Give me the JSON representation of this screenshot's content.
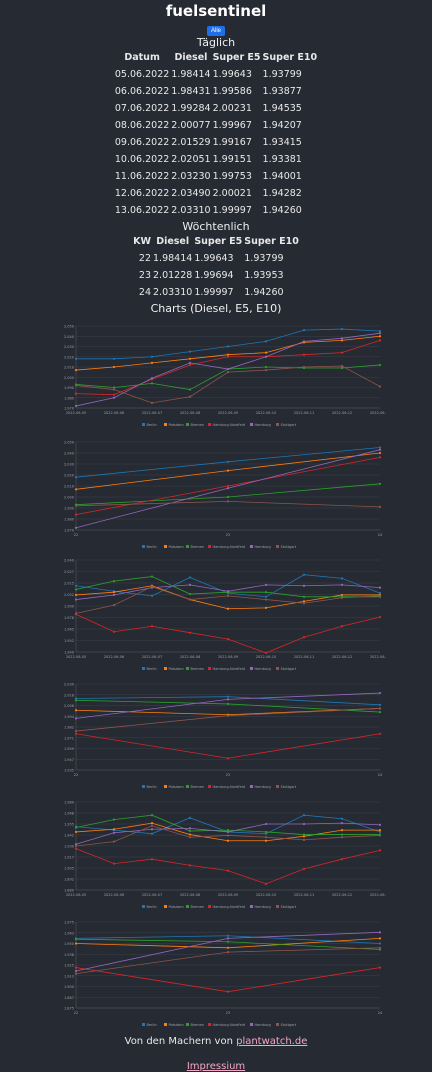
{
  "app": {
    "title": "fuelsentinel",
    "all_button": "Alle"
  },
  "daily": {
    "heading": "Täglich",
    "columns": [
      "Datum",
      "Diesel",
      "Super E5",
      "Super E10"
    ],
    "rows": [
      [
        "05.06.2022",
        "1.98414",
        "1.99643",
        "1.93799"
      ],
      [
        "06.06.2022",
        "1.98431",
        "1.99586",
        "1.93877"
      ],
      [
        "07.06.2022",
        "1.99284",
        "2.00231",
        "1.94535"
      ],
      [
        "08.06.2022",
        "2.00077",
        "1.99967",
        "1.94207"
      ],
      [
        "09.06.2022",
        "2.01529",
        "1.99167",
        "1.93415"
      ],
      [
        "10.06.2022",
        "2.02051",
        "1.99151",
        "1.93381"
      ],
      [
        "11.06.2022",
        "2.03230",
        "1.99753",
        "1.94001"
      ],
      [
        "12.06.2022",
        "2.03490",
        "2.00021",
        "1.94282"
      ],
      [
        "13.06.2022",
        "2.03310",
        "1.99997",
        "1.94260"
      ]
    ]
  },
  "weekly": {
    "heading": "Wöchtenlich",
    "columns": [
      "KW",
      "Diesel",
      "Super E5",
      "Super E10"
    ],
    "rows": [
      [
        "22",
        "1.98414",
        "1.99643",
        "1.93799"
      ],
      [
        "23",
        "2.01228",
        "1.99694",
        "1.93953"
      ],
      [
        "24",
        "2.03310",
        "1.99997",
        "1.94260"
      ]
    ]
  },
  "charts_heading": "Charts (Diesel, E5, E10)",
  "footer": {
    "prefix": "Von den Machern von ",
    "link": "plantwatch.de",
    "impressum": "Impressium"
  },
  "chart_data": [
    {
      "type": "line",
      "id": "diesel-daily",
      "x": [
        "2022-06-05",
        "2022-06-06",
        "2022-06-07",
        "2022-06-08",
        "2022-06-09",
        "2022-06-10",
        "2022-06-11",
        "2022-06-12",
        "2022-06-13"
      ],
      "ylim": [
        1.97,
        2.05
      ],
      "series": [
        {
          "name": "Berlin",
          "color": "#1f77b4",
          "values": [
            2.018,
            2.018,
            2.02,
            2.025,
            2.03,
            2.035,
            2.046,
            2.047,
            2.045
          ]
        },
        {
          "name": "Potsdam",
          "color": "#ff7f0e",
          "values": [
            2.007,
            2.01,
            2.014,
            2.018,
            2.022,
            2.024,
            2.034,
            2.036,
            2.04
          ]
        },
        {
          "name": "Bremen",
          "color": "#2ca02c",
          "values": [
            1.993,
            1.99,
            1.994,
            1.988,
            2.008,
            2.01,
            2.009,
            2.009,
            2.012
          ]
        },
        {
          "name": "Hamburg-Nordfeld",
          "color": "#d62728",
          "values": [
            1.984,
            1.983,
            1.998,
            2.012,
            2.02,
            2.02,
            2.022,
            2.024,
            2.036
          ]
        },
        {
          "name": "Hamburg",
          "color": "#9467bd",
          "values": [
            1.972,
            1.98,
            1.999,
            2.014,
            2.008,
            2.02,
            2.035,
            2.038,
            2.043
          ]
        },
        {
          "name": "Stuttgart",
          "color": "#8c564b",
          "values": [
            1.992,
            1.988,
            1.975,
            1.981,
            2.005,
            2.007,
            2.01,
            2.011,
            1.991
          ]
        }
      ]
    },
    {
      "type": "line",
      "id": "diesel-weekly",
      "x": [
        "22",
        "23",
        "24"
      ],
      "ylim": [
        1.97,
        2.05
      ],
      "series": [
        {
          "name": "Berlin",
          "color": "#1f77b4",
          "values": [
            2.018,
            2.032,
            2.045
          ]
        },
        {
          "name": "Potsdam",
          "color": "#ff7f0e",
          "values": [
            2.007,
            2.024,
            2.04
          ]
        },
        {
          "name": "Bremen",
          "color": "#2ca02c",
          "values": [
            1.993,
            2.0,
            2.012
          ]
        },
        {
          "name": "Hamburg-Nordfeld",
          "color": "#d62728",
          "values": [
            1.984,
            2.01,
            2.036
          ]
        },
        {
          "name": "Hamburg",
          "color": "#9467bd",
          "values": [
            1.972,
            2.008,
            2.043
          ]
        },
        {
          "name": "Stuttgart",
          "color": "#8c564b",
          "values": [
            1.992,
            1.996,
            1.991
          ]
        }
      ]
    },
    {
      "type": "line",
      "id": "e5-daily",
      "x": [
        "2022-06-05",
        "2022-06-06",
        "2022-06-07",
        "2022-06-08",
        "2022-06-09",
        "2022-06-10",
        "2022-06-11",
        "2022-06-12",
        "2022-06-13"
      ],
      "ylim": [
        1.94,
        2.04
      ],
      "series": [
        {
          "name": "Berlin",
          "color": "#1f77b4",
          "values": [
            2.012,
            2.006,
            2.001,
            2.021,
            2.004,
            2.0,
            2.024,
            2.02,
            2.004
          ]
        },
        {
          "name": "Potsdam",
          "color": "#ff7f0e",
          "values": [
            2.002,
            2.005,
            2.012,
            1.997,
            1.987,
            1.988,
            1.995,
            2.002,
            2.002
          ]
        },
        {
          "name": "Bremen",
          "color": "#2ca02c",
          "values": [
            2.008,
            2.017,
            2.022,
            2.003,
            2.005,
            2.005,
            2.0,
            2.0,
            2.0
          ]
        },
        {
          "name": "Hamburg-Nordfeld",
          "color": "#d62728",
          "values": [
            1.981,
            1.962,
            1.968,
            1.961,
            1.954,
            1.939,
            1.956,
            1.968,
            1.978
          ]
        },
        {
          "name": "Hamburg",
          "color": "#9467bd",
          "values": [
            1.997,
            2.002,
            2.01,
            2.013,
            2.006,
            2.013,
            2.012,
            2.013,
            2.01
          ]
        },
        {
          "name": "Stuttgart",
          "color": "#8c564b",
          "values": [
            1.982,
            1.991,
            2.011,
            1.997,
            2.001,
            1.997,
            1.993,
            1.999,
            2.001
          ]
        }
      ]
    },
    {
      "type": "line",
      "id": "e5-weekly",
      "x": [
        "22",
        "23",
        "24"
      ],
      "ylim": [
        1.935,
        2.03
      ],
      "series": [
        {
          "name": "Berlin",
          "color": "#1f77b4",
          "values": [
            2.014,
            2.016,
            2.007
          ]
        },
        {
          "name": "Potsdam",
          "color": "#ff7f0e",
          "values": [
            2.001,
            1.996,
            2.003
          ]
        },
        {
          "name": "Bremen",
          "color": "#2ca02c",
          "values": [
            2.012,
            2.008,
            1.999
          ]
        },
        {
          "name": "Hamburg-Nordfeld",
          "color": "#d62728",
          "values": [
            1.975,
            1.948,
            1.975
          ]
        },
        {
          "name": "Hamburg",
          "color": "#9467bd",
          "values": [
            1.992,
            2.013,
            2.02
          ]
        },
        {
          "name": "Stuttgart",
          "color": "#8c564b",
          "values": [
            1.978,
            1.995,
            2.003
          ]
        }
      ]
    },
    {
      "type": "line",
      "id": "e10-daily",
      "x": [
        "2022-06-05",
        "2022-06-06",
        "2022-06-07",
        "2022-06-08",
        "2022-06-09",
        "2022-06-10",
        "2022-06-11",
        "2022-06-12",
        "2022-06-13"
      ],
      "ylim": [
        1.88,
        1.98
      ],
      "series": [
        {
          "name": "Berlin",
          "color": "#1f77b4",
          "values": [
            1.952,
            1.948,
            1.944,
            1.962,
            1.946,
            1.944,
            1.965,
            1.961,
            1.946
          ]
        },
        {
          "name": "Potsdam",
          "color": "#ff7f0e",
          "values": [
            1.946,
            1.949,
            1.956,
            1.943,
            1.936,
            1.936,
            1.941,
            1.948,
            1.948
          ]
        },
        {
          "name": "Bremen",
          "color": "#2ca02c",
          "values": [
            1.951,
            1.96,
            1.965,
            1.947,
            1.948,
            1.946,
            1.943,
            1.943,
            1.943
          ]
        },
        {
          "name": "Hamburg-Nordfeld",
          "color": "#d62728",
          "values": [
            1.927,
            1.91,
            1.915,
            1.908,
            1.902,
            1.887,
            1.904,
            1.915,
            1.925
          ]
        },
        {
          "name": "Hamburg",
          "color": "#9467bd",
          "values": [
            1.932,
            1.945,
            1.949,
            1.95,
            1.946,
            1.955,
            1.955,
            1.956,
            1.954
          ]
        },
        {
          "name": "Stuttgart",
          "color": "#8c564b",
          "values": [
            1.93,
            1.935,
            1.953,
            1.94,
            1.942,
            1.94,
            1.937,
            1.94,
            1.942
          ]
        }
      ]
    },
    {
      "type": "line",
      "id": "e10-weekly",
      "x": [
        "22",
        "23",
        "24"
      ],
      "ylim": [
        1.875,
        1.975
      ],
      "series": [
        {
          "name": "Berlin",
          "color": "#1f77b4",
          "values": [
            1.956,
            1.959,
            1.95
          ]
        },
        {
          "name": "Potsdam",
          "color": "#ff7f0e",
          "values": [
            1.95,
            1.945,
            1.956
          ]
        },
        {
          "name": "Bremen",
          "color": "#2ca02c",
          "values": [
            1.955,
            1.952,
            1.943
          ]
        },
        {
          "name": "Hamburg-Nordfeld",
          "color": "#d62728",
          "values": [
            1.922,
            1.894,
            1.922
          ]
        },
        {
          "name": "Hamburg",
          "color": "#9467bd",
          "values": [
            1.918,
            1.956,
            1.963
          ]
        },
        {
          "name": "Stuttgart",
          "color": "#8c564b",
          "values": [
            1.915,
            1.94,
            1.945
          ]
        }
      ]
    }
  ]
}
